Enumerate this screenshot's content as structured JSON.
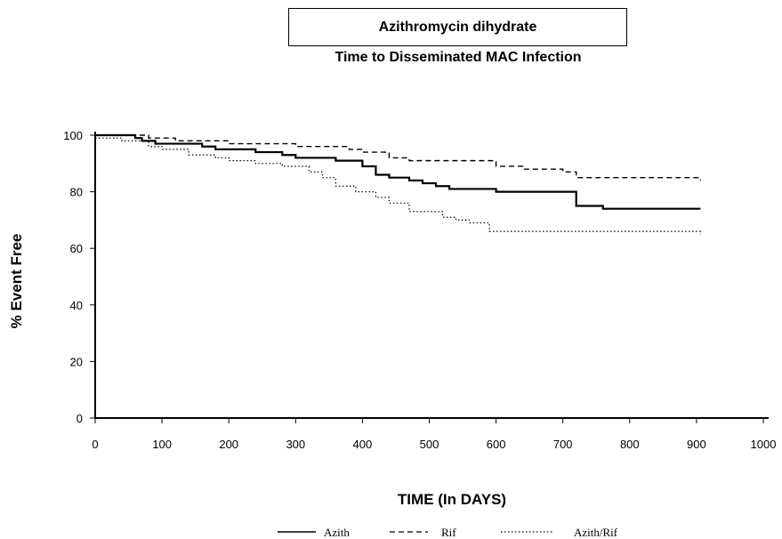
{
  "chart_data": {
    "type": "line",
    "title": "Azithromycin dihydrate",
    "subtitle": "Time to Disseminated MAC Infection",
    "xlabel": "TIME (In DAYS)",
    "ylabel": "% Event Free",
    "xlim": [
      0,
      1000
    ],
    "ylim": [
      0,
      100
    ],
    "xticks": [
      "0",
      "100",
      "200",
      "300",
      "400",
      "500",
      "600",
      "700",
      "800",
      "900",
      "1000"
    ],
    "yticks": [
      "0",
      "20",
      "40",
      "60",
      "80",
      "100"
    ],
    "grid": false,
    "legend_position": "bottom",
    "series": [
      {
        "name": "Azith",
        "style": "solid",
        "points": [
          [
            0,
            100
          ],
          [
            60,
            99
          ],
          [
            70,
            98
          ],
          [
            90,
            97
          ],
          [
            100,
            97
          ],
          [
            160,
            96
          ],
          [
            180,
            95
          ],
          [
            210,
            95
          ],
          [
            240,
            94
          ],
          [
            280,
            93
          ],
          [
            300,
            92
          ],
          [
            330,
            92
          ],
          [
            360,
            91
          ],
          [
            400,
            89
          ],
          [
            420,
            86
          ],
          [
            440,
            85
          ],
          [
            470,
            84
          ],
          [
            490,
            83
          ],
          [
            510,
            82
          ],
          [
            530,
            81
          ],
          [
            580,
            81
          ],
          [
            600,
            80
          ],
          [
            630,
            80
          ],
          [
            700,
            80
          ],
          [
            720,
            75
          ],
          [
            760,
            74
          ],
          [
            906,
            74
          ]
        ]
      },
      {
        "name": "Rif",
        "style": "dashed",
        "points": [
          [
            0,
            100
          ],
          [
            80,
            99
          ],
          [
            120,
            98
          ],
          [
            160,
            98
          ],
          [
            200,
            97
          ],
          [
            250,
            97
          ],
          [
            300,
            96
          ],
          [
            380,
            95
          ],
          [
            400,
            94
          ],
          [
            440,
            92
          ],
          [
            470,
            91
          ],
          [
            500,
            91
          ],
          [
            580,
            91
          ],
          [
            600,
            89
          ],
          [
            640,
            88
          ],
          [
            700,
            87
          ],
          [
            720,
            85
          ],
          [
            760,
            85
          ],
          [
            800,
            85
          ],
          [
            906,
            84
          ]
        ]
      },
      {
        "name": "Azith/Rif",
        "style": "dotted",
        "points": [
          [
            0,
            99
          ],
          [
            40,
            98
          ],
          [
            80,
            96
          ],
          [
            100,
            95
          ],
          [
            140,
            93
          ],
          [
            180,
            92
          ],
          [
            200,
            91
          ],
          [
            240,
            90
          ],
          [
            280,
            89
          ],
          [
            320,
            87
          ],
          [
            340,
            85
          ],
          [
            360,
            82
          ],
          [
            390,
            80
          ],
          [
            420,
            78
          ],
          [
            440,
            76
          ],
          [
            470,
            73
          ],
          [
            500,
            73
          ],
          [
            520,
            71
          ],
          [
            540,
            70
          ],
          [
            560,
            69
          ],
          [
            590,
            66
          ],
          [
            600,
            66
          ],
          [
            640,
            66
          ],
          [
            680,
            66
          ],
          [
            720,
            66
          ],
          [
            800,
            66
          ],
          [
            906,
            65
          ]
        ]
      }
    ]
  }
}
